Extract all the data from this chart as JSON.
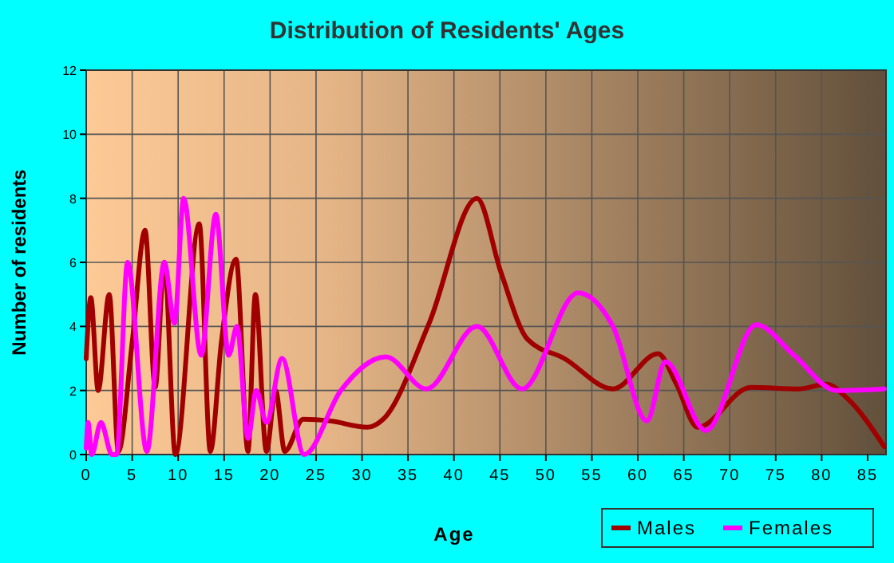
{
  "chart_data": {
    "type": "line",
    "title": "Distribution of Residents' Ages",
    "xlabel": "Age",
    "ylabel": "Number of residents",
    "xlim": [
      0,
      87
    ],
    "ylim": [
      0,
      12
    ],
    "xticks": [
      0,
      5,
      10,
      15,
      20,
      25,
      30,
      35,
      40,
      45,
      50,
      55,
      60,
      65,
      70,
      75,
      80,
      85
    ],
    "yticks": [
      0,
      2,
      4,
      6,
      8,
      10,
      12
    ],
    "grid": true,
    "legend": "bottom right",
    "marker": "none",
    "series": [
      {
        "name": "Males",
        "color": "#a00000",
        "x": [
          0,
          0.5,
          1.3,
          2.5,
          3.5,
          5,
          6.4,
          7.5,
          8.5,
          9.7,
          12.3,
          13.5,
          14.7,
          16.3,
          17.6,
          18.4,
          19.6,
          20.6,
          21.6,
          23.6,
          26.5,
          30.6,
          32.3,
          37.3,
          42.5,
          45.1,
          48,
          52,
          57.3,
          62.2,
          64.2,
          66.5,
          72.3,
          77.6,
          80.5,
          82.8,
          86.8
        ],
        "values": [
          3,
          4.9,
          2,
          5,
          0.1,
          3.5,
          7,
          2.1,
          6,
          0,
          7.2,
          0.1,
          3.5,
          6.1,
          0.1,
          5,
          0.1,
          2,
          0.1,
          1.1,
          1.05,
          0.85,
          1.1,
          4.1,
          8,
          5.7,
          3.6,
          3,
          2.05,
          3.15,
          2.2,
          0.85,
          2.1,
          2.05,
          2.2,
          1.75,
          0.25
        ]
      },
      {
        "name": "Females",
        "color": "#ff00ff",
        "x": [
          0,
          0.2,
          0.6,
          1.6,
          2.8,
          3.3,
          4.5,
          6.6,
          8.5,
          9.6,
          10.6,
          12.5,
          14.1,
          15.5,
          16.4,
          17.6,
          18.5,
          19.6,
          21.3,
          23.7,
          27.7,
          32.6,
          37,
          42.5,
          47.4,
          53.5,
          57.3,
          61,
          63,
          67.4,
          72.9,
          77,
          81.6,
          86.8
        ],
        "values": [
          0.2,
          1,
          0,
          1,
          0,
          0,
          6,
          0.1,
          6,
          4.1,
          8,
          3.1,
          7.5,
          3.1,
          4,
          0.5,
          2,
          1,
          3,
          0,
          2,
          3.05,
          2.05,
          4,
          2.05,
          5.05,
          4,
          1.05,
          2.9,
          0.75,
          4.05,
          3.1,
          2,
          2.05
        ]
      }
    ]
  }
}
